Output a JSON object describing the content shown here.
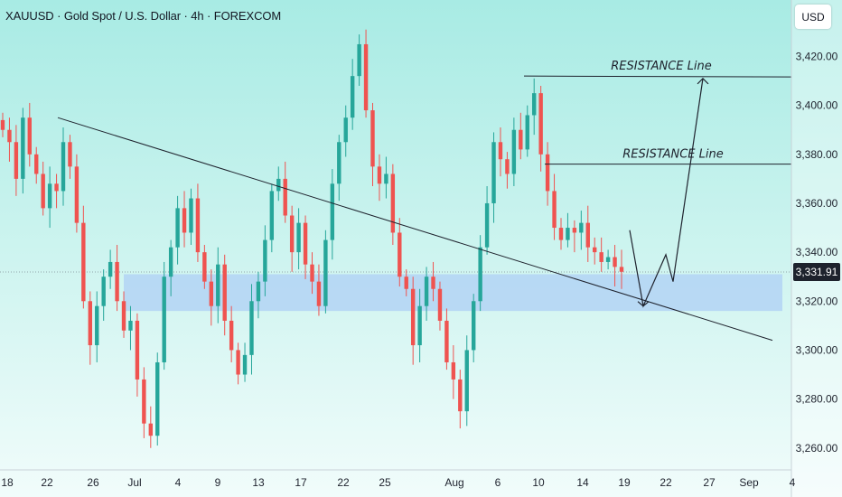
{
  "header": {
    "title": "XAUUSD · Gold Spot / U.S. Dollar · 4h · FOREXCOM"
  },
  "currency_button": "USD",
  "annotations": {
    "resistance_upper": "RESISTANCE Line",
    "resistance_lower": "RESISTANCE Line"
  },
  "colors": {
    "up": "#26a69a",
    "down": "#ef5350",
    "zone": "#b3d4f5",
    "line": "#1e222d"
  },
  "chart_data": {
    "type": "candlestick",
    "symbol": "XAUUSD",
    "timeframe": "4h",
    "ylim": [
      3254,
      3432
    ],
    "y_ticks": [
      3260,
      3280,
      3300,
      3320,
      3340,
      3360,
      3380,
      3400,
      3420
    ],
    "y_tick_labels": [
      "3,260.00",
      "3,280.00",
      "3,300.00",
      "3,320.00",
      "3,340.00",
      "3,360.00",
      "3,380.00",
      "3,400.00",
      "3,420.00"
    ],
    "x_tick_labels": [
      "18",
      "22",
      "26",
      "Jul",
      "4",
      "9",
      "13",
      "17",
      "22",
      "25",
      "Aug",
      "6",
      "10",
      "14",
      "19",
      "22",
      "27",
      "Sep",
      "4"
    ],
    "current_price": 3331.91,
    "current_price_label": "3,331.91",
    "support_zone": {
      "low": 3316,
      "high": 3331
    },
    "trendline": {
      "start_price": 3395,
      "end_price": 3304
    },
    "resistance_levels": [
      3412,
      3376
    ],
    "projection_path": [
      3349,
      3318,
      3339,
      3328,
      3411
    ],
    "close_path": [
      3390,
      3385,
      3370,
      3395,
      3380,
      3372,
      3358,
      3368,
      3365,
      3385,
      3375,
      3352,
      3320,
      3302,
      3318,
      3330,
      3336,
      3320,
      3308,
      3312,
      3288,
      3270,
      3265,
      3295,
      3330,
      3342,
      3358,
      3348,
      3362,
      3340,
      3328,
      3318,
      3335,
      3312,
      3300,
      3290,
      3298,
      3320,
      3328,
      3345,
      3365,
      3370,
      3355,
      3340,
      3352,
      3335,
      3328,
      3318,
      3345,
      3368,
      3385,
      3395,
      3412,
      3425,
      3398,
      3375,
      3368,
      3372,
      3348,
      3330,
      3325,
      3302,
      3318,
      3330,
      3325,
      3312,
      3295,
      3288,
      3275,
      3300,
      3320,
      3342,
      3360,
      3385,
      3378,
      3372,
      3390,
      3382,
      3396,
      3405,
      3380,
      3365,
      3350,
      3345,
      3350,
      3348,
      3352,
      3342,
      3340,
      3336,
      3338,
      3334,
      3332
    ]
  }
}
